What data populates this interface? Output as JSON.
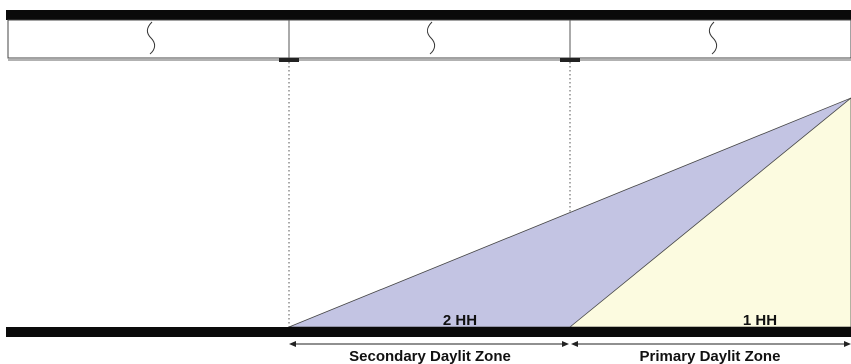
{
  "colors": {
    "slab": "#0a0a0a",
    "secondary_zone_fill": "#c3c4e3",
    "primary_zone_fill": "#fcfbe0",
    "line": "#333333",
    "dotted_guide": "#555555"
  },
  "labels": {
    "secondary_height": "2 HH",
    "primary_height": "1 HH",
    "secondary_zone": "Secondary Daylit Zone",
    "primary_zone": "Primary Daylit Zone"
  }
}
